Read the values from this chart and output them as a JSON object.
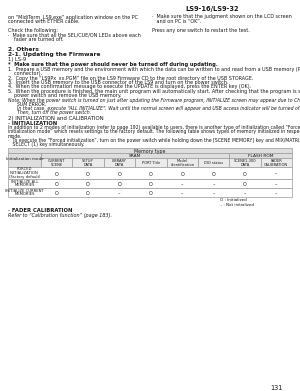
{
  "page_num": "131",
  "header_text": "LS9-16/LS9-32",
  "bg_color": "#ffffff",
  "top_left_col": [
    "on “MidiTerm_LS9.exe” application window on the PC",
    "connected with ETHER cable.",
    "",
    "Check the following:",
    "·  Make sure that all the SEL/CUE/ON LEDs above each",
    "    fader are turned off."
  ],
  "top_right_col": [
    "·  Make sure that the judgment shown on the LCD screen",
    "   and on PC is “OK”.",
    "",
    "Press any one switch to restart the test."
  ],
  "section2_title": "2. Others",
  "section21_title": "2-1. Updating the Firmware",
  "ls9_label": "1) LS-9",
  "warning_text": "*  Make sure that the power should never be turned off during updating.",
  "steps": [
    "1.  Prepare a USB memory and the environment with which the data can be written to and read from a USB memory (PC with USB",
    "    connector).",
    "2.  Copy the “LS9Px_xx.PGM” file on the LS9 Firmware CD to the root directory of the USB STORAGE.",
    "3.  Insert the USB memory to the USB connector of the LS9 and turn on the power switch.",
    "4.  When the confirmation message to execute the UPDATE is displayed, press the ENTER key (OK).",
    "5.  When the procedure is finished, the main unit program will automatically start. After checking that the program is started, turn off the",
    "    power switch and remove the USB memory."
  ],
  "note_lines": [
    "Note: When the power switch is turned on just after updating the Firmware program, INITIALIZE screen may appear due to CHECK",
    "      SUM ERROR.",
    "      In that case, execute “ALL INITIALIZE”. Wait until the normal screen will appear and USB access indicator will be turned off.",
    "      Then, turn off the power switch."
  ],
  "section2_init_title": "2) INITIALIZATION and CALIBRATION",
  "init_subtitle": "· INITIALIZATION",
  "init_para1_lines": [
    "In addition to 2 modes of initialization (refer to page 192) available to users, there is another type of initialization called “Forced",
    "initialization mode” which resets settings to the factory default. The following table shows types of memory initialized in respective",
    "mode."
  ],
  "init_bullet_lines": [
    "·  To execute the “Forced initialization”, turn on the power switch while holding down the [SCENE MEMORY] key and MIX/MATRIX",
    "   SELECT (1) key simultaneously."
  ],
  "table_header_top": "Memory type",
  "table_col_group1": "SRAM",
  "table_col_group2": "FLASH ROM",
  "table_cols": [
    "CURRENT\nSCENE",
    "SETUP\nDATA",
    "LIBRARY\nDATA",
    "PORT Title",
    "Model\nidentification",
    "DIO status",
    "SCENE1-300\nDATA",
    "FADER\nCALIBRATION"
  ],
  "table_rows": [
    {
      "label": "FORCED\nINITIALIZATION\n(Factory default)",
      "values": [
        "O",
        "O",
        "O",
        "O",
        "O",
        "O",
        "O",
        "–"
      ]
    },
    {
      "label": "INITIALIZE ALL\nMEMORIES",
      "values": [
        "O",
        "O",
        "O",
        "O",
        "–",
        "–",
        "O",
        "–"
      ]
    },
    {
      "label": "INITIALIZE CURRENT\nMEMORIES",
      "values": [
        "O",
        "O",
        "–",
        "O",
        "–",
        "–",
        "–",
        "–"
      ]
    }
  ],
  "legend_o": "O : Initialized",
  "legend_dash": "– : Not initialized",
  "fader_cal_title": "· FADER CALIBRATION",
  "fader_cal_text": "Refer to “Calibration function” (page 183)."
}
